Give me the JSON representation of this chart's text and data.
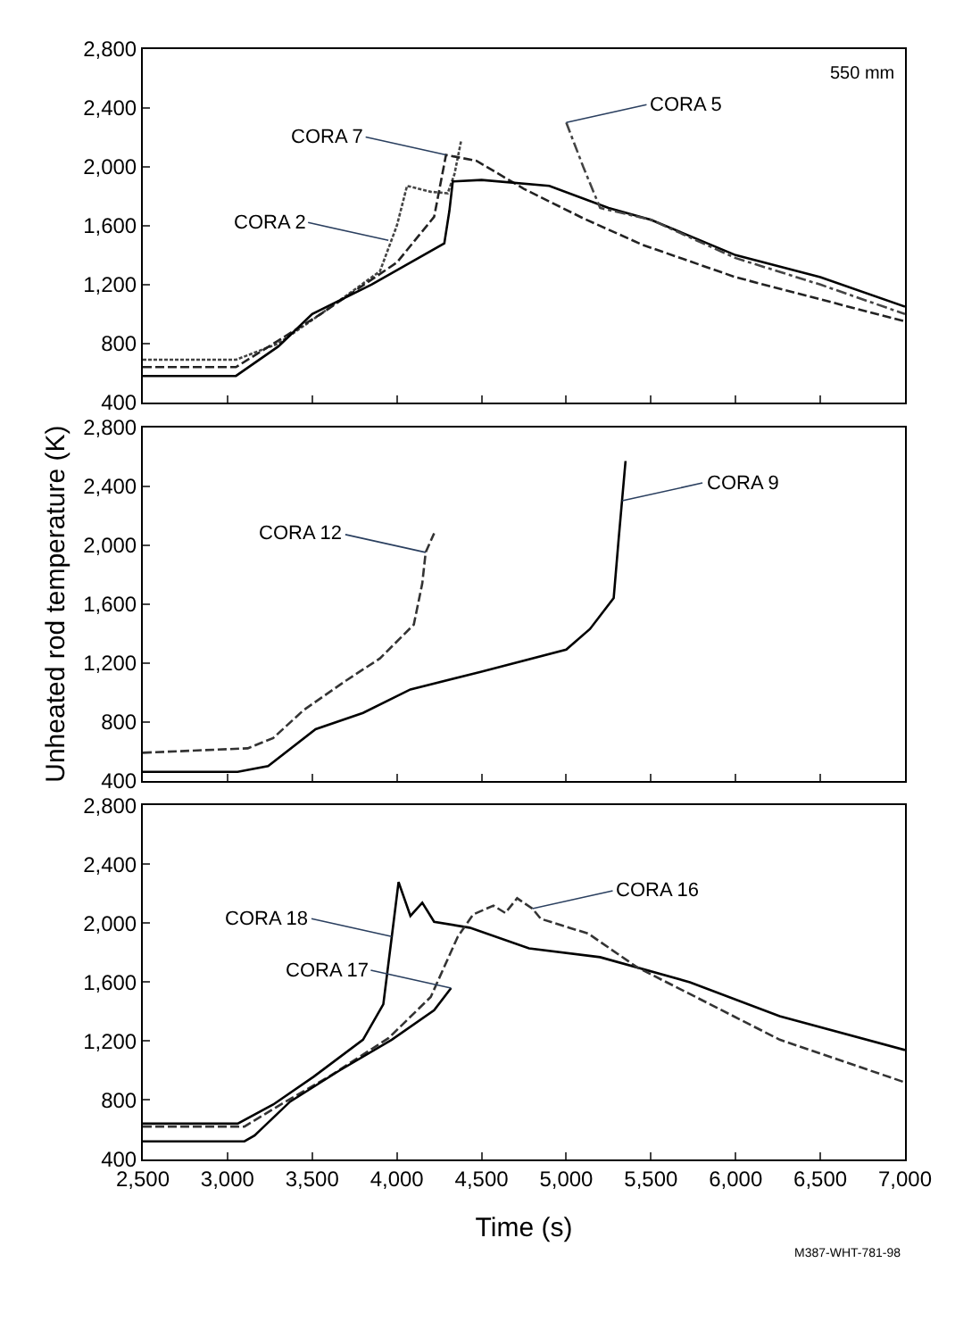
{
  "chart_data": [
    {
      "type": "line",
      "xlim": [
        2500,
        7000
      ],
      "xticks": [
        {
          "value": 2500,
          "label": null
        },
        {
          "value": 3000,
          "label": null
        },
        {
          "value": 3500,
          "label": null
        },
        {
          "value": 4000,
          "label": null
        },
        {
          "value": 4500,
          "label": null
        },
        {
          "value": 5000,
          "label": null
        },
        {
          "value": 5500,
          "label": null
        },
        {
          "value": 6000,
          "label": null
        },
        {
          "value": 6500,
          "label": null
        },
        {
          "value": 7000,
          "label": null
        }
      ],
      "ylim": [
        400,
        2800
      ],
      "yticks": [
        400,
        800,
        {
          "value": 1200,
          "label": "1,200"
        },
        {
          "value": 1600,
          "label": "1,600"
        },
        {
          "value": 2000,
          "label": "2,000"
        },
        {
          "value": 2400,
          "label": "2,400"
        },
        {
          "value": 2800,
          "label": "2,800"
        }
      ],
      "tick_labels": "y",
      "series": [
        {
          "color": "#444444",
          "line_style": "dotted",
          "x": [
            2500,
            3050,
            3300,
            3550,
            3900,
            4000,
            4060,
            4200,
            4300,
            4340,
            4380
          ],
          "values": [
            690,
            690,
            800,
            1000,
            1290,
            1600,
            1870,
            1830,
            1820,
            1950,
            2180
          ]
        },
        {
          "color": "#222222",
          "line_style": "dashed",
          "x": [
            2500,
            3050,
            3300,
            3550,
            4000,
            4220,
            4290,
            4470,
            4750,
            5100,
            5450,
            6000,
            6500,
            7000
          ],
          "values": [
            640,
            640,
            820,
            1000,
            1350,
            1660,
            2080,
            2040,
            1850,
            1650,
            1470,
            1250,
            1100,
            950
          ]
        },
        {
          "color": "#000000",
          "line_style": "solid",
          "x": [
            2500,
            3050,
            3300,
            3500,
            3850,
            4280,
            4310,
            4330,
            4500,
            4900,
            5250,
            5500,
            6000,
            6500,
            7000
          ],
          "values": [
            580,
            580,
            780,
            1000,
            1200,
            1480,
            1700,
            1900,
            1910,
            1870,
            1720,
            1640,
            1400,
            1250,
            1050
          ]
        },
        {
          "color": "#444444",
          "line_style": "dashdot",
          "x": [
            5000,
            5100,
            5200,
            5500,
            6000,
            6500,
            7000
          ],
          "values": [
            2300,
            2000,
            1720,
            1640,
            1380,
            1200,
            1000
          ]
        }
      ],
      "annotations": [
        {
          "text": "CORA 7",
          "x": 4290,
          "y": 2080
        },
        {
          "text": "CORA 2",
          "x": 3950,
          "y": 1500
        },
        {
          "text": "CORA 5",
          "x": 5000,
          "y": 2300
        },
        "550 mm"
      ]
    },
    {
      "type": "line",
      "ylabel": "Unheated rod temperature (K)",
      "xlim": [
        2500,
        7000
      ],
      "xticks": [
        {
          "value": 2500,
          "label": null
        },
        {
          "value": 3000,
          "label": null
        },
        {
          "value": 3500,
          "label": null
        },
        {
          "value": 4000,
          "label": null
        },
        {
          "value": 4500,
          "label": null
        },
        {
          "value": 5000,
          "label": null
        },
        {
          "value": 5500,
          "label": null
        },
        {
          "value": 6000,
          "label": null
        },
        {
          "value": 6500,
          "label": null
        },
        {
          "value": 7000,
          "label": null
        }
      ],
      "ylim": [
        400,
        2800
      ],
      "yticks": [
        400,
        800,
        {
          "value": 1200,
          "label": "1,200"
        },
        {
          "value": 1600,
          "label": "1,600"
        },
        {
          "value": 2000,
          "label": "2,000"
        },
        {
          "value": 2400,
          "label": "2,400"
        },
        {
          "value": 2800,
          "label": "2,800"
        }
      ],
      "tick_labels": "y",
      "series": [
        {
          "color": "#333333",
          "line_style": "dashed",
          "x": [
            2500,
            3120,
            3270,
            3450,
            3700,
            3900,
            4100,
            4150,
            4170,
            4220
          ],
          "values": [
            590,
            620,
            690,
            880,
            1080,
            1230,
            1460,
            1740,
            1950,
            2080
          ]
        },
        {
          "color": "#000000",
          "line_style": "solid",
          "x": [
            2500,
            3060,
            3240,
            3520,
            3800,
            4080,
            4500,
            5000,
            5140,
            5280,
            5310,
            5350
          ],
          "values": [
            460,
            460,
            500,
            750,
            860,
            1020,
            1140,
            1290,
            1430,
            1640,
            2050,
            2570
          ]
        }
      ],
      "annotations": [
        {
          "text": "CORA 12",
          "x": 4170,
          "y": 1950
        },
        {
          "text": "CORA 9",
          "x": 5330,
          "y": 2300
        }
      ]
    },
    {
      "type": "line",
      "xlabel": "Time (s)",
      "xlim": [
        2500,
        7000
      ],
      "xticks": [
        {
          "value": 2500,
          "label": "2,500"
        },
        {
          "value": 3000,
          "label": "3,000"
        },
        {
          "value": 3500,
          "label": "3,500"
        },
        {
          "value": 4000,
          "label": "4,000"
        },
        {
          "value": 4500,
          "label": "4,500"
        },
        {
          "value": 5000,
          "label": "5,000"
        },
        {
          "value": 5500,
          "label": "5,500"
        },
        {
          "value": 6000,
          "label": "6,000"
        },
        {
          "value": 6500,
          "label": "6,500"
        },
        {
          "value": 7000,
          "label": "7,000"
        }
      ],
      "ylim": [
        400,
        2800
      ],
      "yticks": [
        400,
        800,
        {
          "value": 1200,
          "label": "1,200"
        },
        {
          "value": 1600,
          "label": "1,600"
        },
        {
          "value": 2000,
          "label": "2,000"
        },
        {
          "value": 2400,
          "label": "2,400"
        },
        {
          "value": 2800,
          "label": "2,800"
        }
      ],
      "series": [
        {
          "color": "#000000",
          "line_style": "solid",
          "x": [
            2500,
            3060,
            3270,
            3510,
            3800,
            3920,
            3970,
            4010,
            4080,
            4150,
            4220,
            4430,
            4780,
            5200,
            5730,
            6260,
            7000
          ],
          "values": [
            640,
            640,
            770,
            960,
            1210,
            1450,
            1910,
            2280,
            2050,
            2140,
            2010,
            1970,
            1830,
            1770,
            1600,
            1370,
            1140
          ]
        },
        {
          "color": "#333333",
          "line_style": "dashed",
          "x": [
            2500,
            3100,
            3300,
            3600,
            3950,
            4200,
            4360,
            4450,
            4570,
            4640,
            4710,
            4800,
            4850,
            5130,
            5420,
            5730,
            6260,
            7000
          ],
          "values": [
            620,
            620,
            760,
            960,
            1220,
            1500,
            1910,
            2060,
            2120,
            2070,
            2170,
            2100,
            2030,
            1930,
            1700,
            1520,
            1210,
            920
          ]
        },
        {
          "color": "#000000",
          "line_style": "solid",
          "x": [
            2500,
            3100,
            3160,
            3370,
            3660,
            3970,
            4220,
            4320
          ],
          "values": [
            520,
            520,
            560,
            790,
            1000,
            1210,
            1410,
            1560
          ]
        }
      ],
      "annotations": [
        {
          "text": "CORA 18",
          "x": 3970,
          "y": 1910
        },
        {
          "text": "CORA 16",
          "x": 4800,
          "y": 2100
        },
        {
          "text": "CORA 17",
          "x": 4320,
          "y": 1560
        },
        "M387-WHT-781-98"
      ]
    }
  ]
}
